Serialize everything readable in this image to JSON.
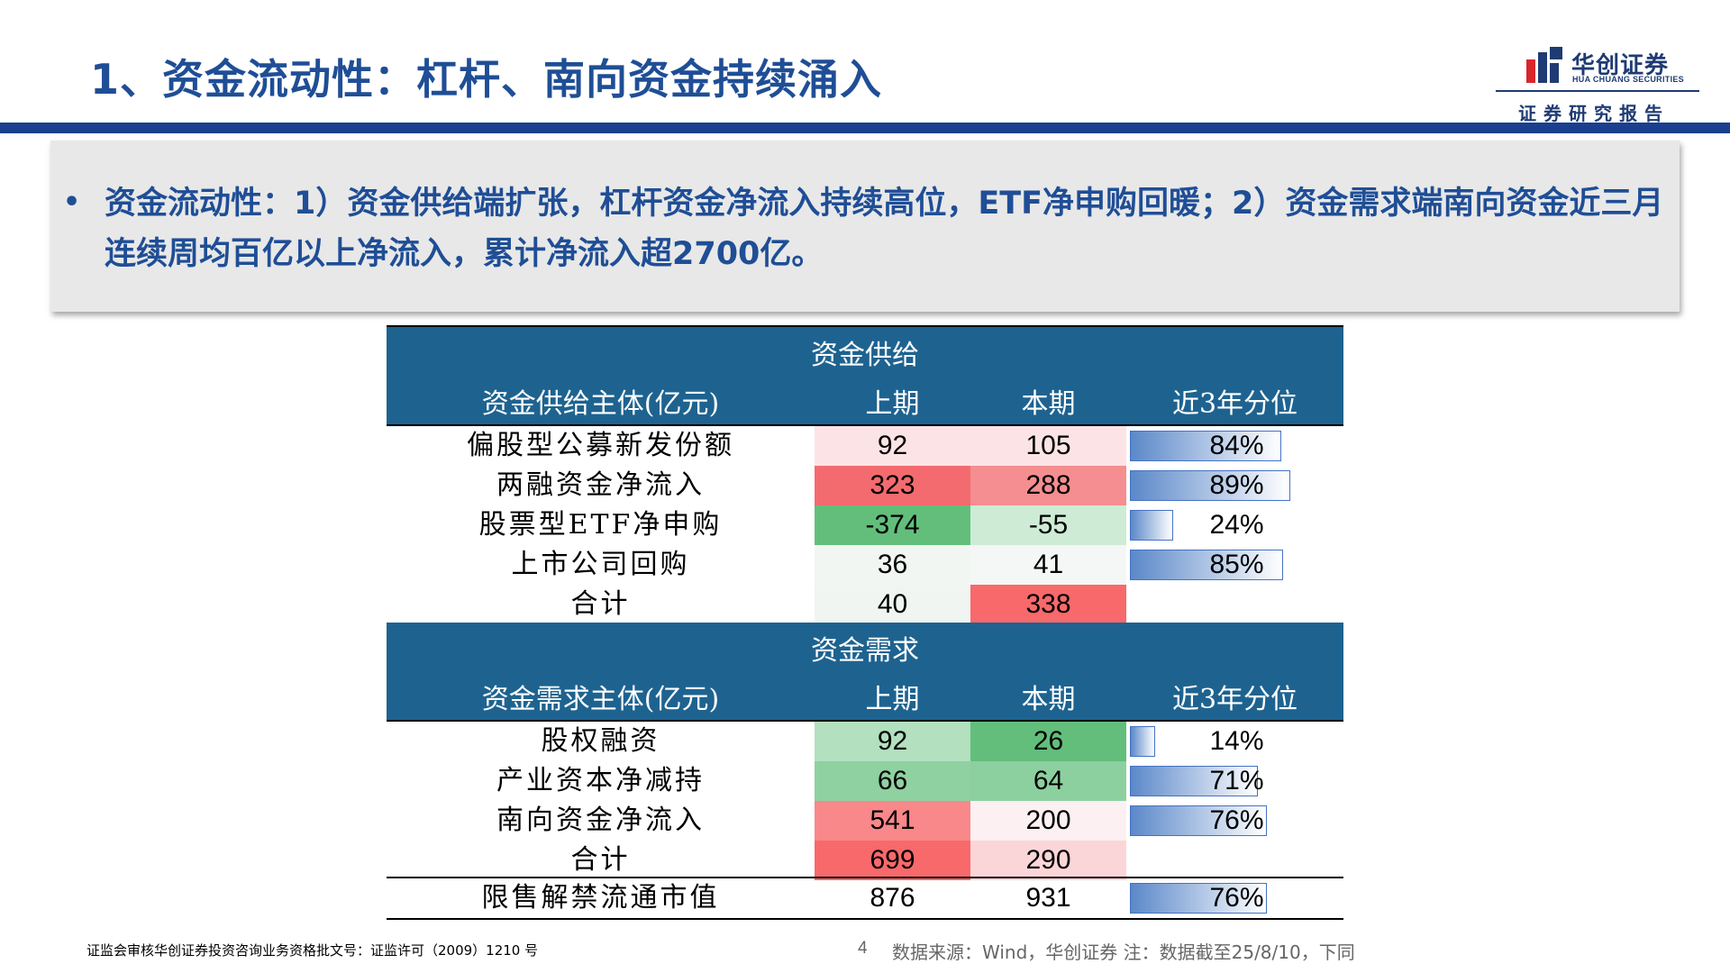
{
  "header": {
    "title": "1、资金流动性：杠杆、南向资金持续涌入",
    "logo_cn": "华创证券",
    "logo_en": "HUA CHUANG SECURITIES",
    "report_label": "证券研究报告"
  },
  "summary": {
    "bullet": "•",
    "text": "资金流动性：1）资金供给端扩张，杠杆资金净流入持续高位，ETF净申购回暖；2）资金需求端南向资金近三月连续周均百亿以上净流入，累计净流入超2700亿。"
  },
  "supply": {
    "section_title": "资金供给",
    "col_entity": "资金供给主体(亿元)",
    "col_prev": "上期",
    "col_curr": "本期",
    "col_pct": "近3年分位",
    "rows": [
      {
        "label": "偏股型公募新发份额",
        "prev": "92",
        "curr": "105",
        "pct": "84%",
        "pct_value": 0.84,
        "prev_color": "#FCE4E6",
        "curr_color": "#FCE4E6"
      },
      {
        "label": "两融资金净流入",
        "prev": "323",
        "curr": "288",
        "pct": "89%",
        "pct_value": 0.89,
        "prev_color": "#F36B6F",
        "curr_color": "#F58E90"
      },
      {
        "label": "股票型ETF净申购",
        "prev": "-374",
        "curr": "-55",
        "pct": "24%",
        "pct_value": 0.24,
        "prev_color": "#63BE7B",
        "curr_color": "#CEEBD6"
      },
      {
        "label": "上市公司回购",
        "prev": "36",
        "curr": "41",
        "pct": "85%",
        "pct_value": 0.85,
        "prev_color": "#F2F6F3",
        "curr_color": "#F5F6F6"
      },
      {
        "label": "合计",
        "prev": "40",
        "curr": "338",
        "pct": "",
        "pct_value": null,
        "prev_color": "#F0F5F2",
        "curr_color": "#F8696B"
      }
    ]
  },
  "demand": {
    "section_title": "资金需求",
    "col_entity": "资金需求主体(亿元)",
    "col_prev": "上期",
    "col_curr": "本期",
    "col_pct": "近3年分位",
    "rows": [
      {
        "label": "股权融资",
        "prev": "92",
        "curr": "26",
        "pct": "14%",
        "pct_value": 0.14,
        "prev_color": "#B3E0BF",
        "curr_color": "#63BE7B"
      },
      {
        "label": "产业资本净减持",
        "prev": "66",
        "curr": "64",
        "pct": "71%",
        "pct_value": 0.71,
        "prev_color": "#8FD1A1",
        "curr_color": "#8DD09F"
      },
      {
        "label": "南向资金净流入",
        "prev": "541",
        "curr": "200",
        "pct": "76%",
        "pct_value": 0.76,
        "prev_color": "#F8888A",
        "curr_color": "#FCF0F2"
      },
      {
        "label": "合计",
        "prev": "699",
        "curr": "290",
        "pct": "",
        "pct_value": null,
        "prev_color": "#F8696B",
        "curr_color": "#FBD6D9"
      }
    ]
  },
  "unlock": {
    "label": "限售解禁流通市值",
    "prev": "876",
    "curr": "931",
    "pct": "76%",
    "pct_value": 0.76
  },
  "footer": {
    "license": "证监会审核华创证券投资咨询业务资格批文号：证监许可（2009）1210 号",
    "page": "4",
    "source": "数据来源：Wind，华创证券  注：数据截至25/8/10，下同"
  },
  "colors": {
    "title": "#1F4E96",
    "table_header": "#1E6390",
    "bar_border": "#4472C4",
    "top_bar": "#1B3F8F"
  }
}
